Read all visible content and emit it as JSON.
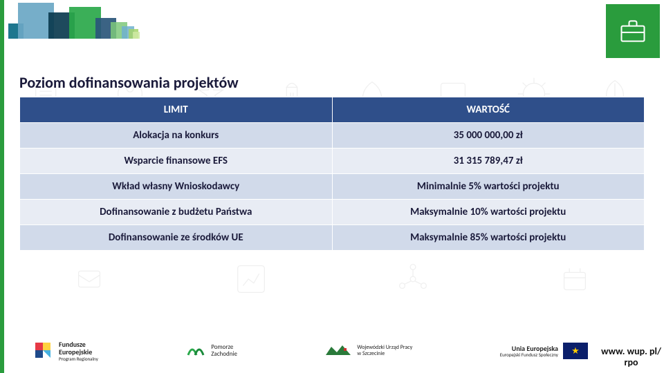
{
  "title": "Poziom dofinansowania projektów",
  "table": {
    "header_bg": "#2f4f8a",
    "header_fg": "#ffffff",
    "row_a_bg": "#d1daea",
    "row_b_bg": "#e8ecf4",
    "columns": [
      "LIMIT",
      "WARTOŚĆ"
    ],
    "rows": [
      [
        "Alokacja na konkurs",
        "35 000 000,00 zł"
      ],
      [
        "Wsparcie finansowe EFS",
        "31 315 789,47 zł"
      ],
      [
        "Wkład własny Wnioskodawcy",
        "Minimalnie 5% wartości projektu"
      ],
      [
        "Dofinansowanie z budżetu Państwa",
        "Maksymalnie 10% wartości projektu"
      ],
      [
        "Dofinansowanie ze środków UE",
        "Maksymalnie 85% wartości projektu"
      ]
    ]
  },
  "top_right_icon": "briefcase-icon",
  "accent_green": "#2a9c3d",
  "squares": [
    {
      "c": "#0b6b85",
      "s": 22,
      "y": 22
    },
    {
      "c": "#6aa7c4",
      "s": 52,
      "y": 0
    },
    {
      "c": "#0b3b4f",
      "s": 38,
      "y": 18
    },
    {
      "c": "#2aa84a",
      "s": 46,
      "y": 6
    },
    {
      "c": "#2a567a",
      "s": 30,
      "y": 24
    },
    {
      "c": "#7ec87a",
      "s": 24,
      "y": 32
    },
    {
      "c": "#6fb0cf",
      "s": 18,
      "y": 38
    },
    {
      "c": "#a4d46a",
      "s": 14,
      "y": 42
    },
    {
      "c": "#cfe9a3",
      "s": 10,
      "y": 46
    }
  ],
  "footer": {
    "logos": {
      "fe": {
        "l1": "Fundusze",
        "l2": "Europejskie",
        "l3": "Program Regionalny"
      },
      "pz": {
        "l1": "Pomorze",
        "l2": "Zachodnie"
      },
      "wup": {
        "l1": "Wojewódzki Urząd Pracy",
        "l2": "w Szczecinie"
      },
      "ue": {
        "l1": "Unia Europejska",
        "l2": "Europejski Fundusz Społeczny"
      }
    },
    "url_l1": "www. wup. pl/",
    "url_l2": "rpo"
  }
}
